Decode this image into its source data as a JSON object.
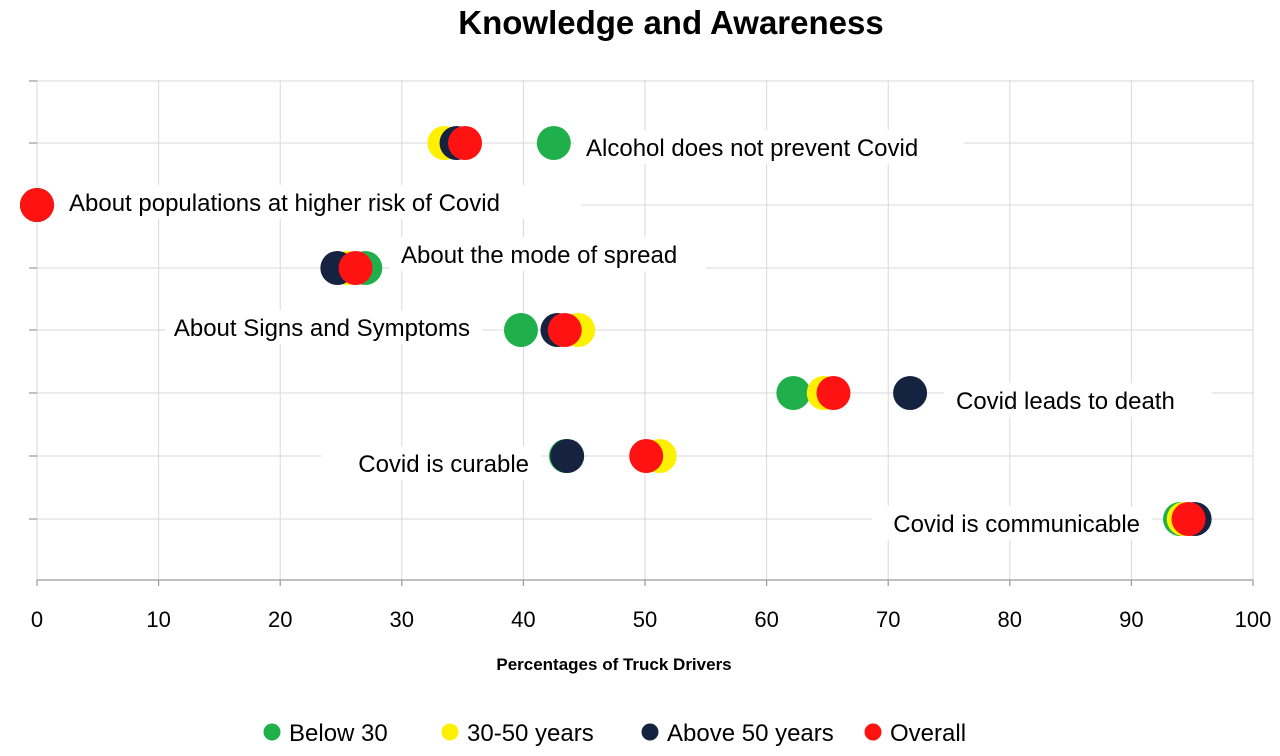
{
  "chart_data": {
    "type": "scatter",
    "title": "Knowledge and Awareness",
    "xlabel": "Percentages of Truck Drivers",
    "ylabel": "",
    "xlim": [
      0,
      100
    ],
    "x_ticks": [
      0,
      10,
      20,
      30,
      40,
      50,
      60,
      70,
      80,
      90,
      100
    ],
    "grid": true,
    "legend_position": "bottom",
    "categories": [
      "Alcohol does not prevent Covid",
      "About populations at higher risk of Covid",
      "About the mode of spread",
      "About Signs and Symptoms",
      "Covid leads to death",
      "Covid is curable",
      "Covid is communicable"
    ],
    "series": [
      {
        "name": "Below 30",
        "color": "#1fb04b",
        "values": [
          42.5,
          0,
          27,
          39.8,
          62.2,
          43.5,
          94
        ]
      },
      {
        "name": "30-50 years",
        "color": "#ffef00",
        "values": [
          33.5,
          0,
          25.5,
          44.5,
          64.7,
          51.2,
          94.3
        ]
      },
      {
        "name": "Above 50 years",
        "color": "#152340",
        "values": [
          34.5,
          0,
          24.7,
          42.8,
          71.8,
          43.6,
          95.2
        ]
      },
      {
        "name": "Overall",
        "color": "#ff1212",
        "values": [
          35.2,
          0,
          26.2,
          43.4,
          65.5,
          50.1,
          94.7
        ]
      }
    ]
  }
}
